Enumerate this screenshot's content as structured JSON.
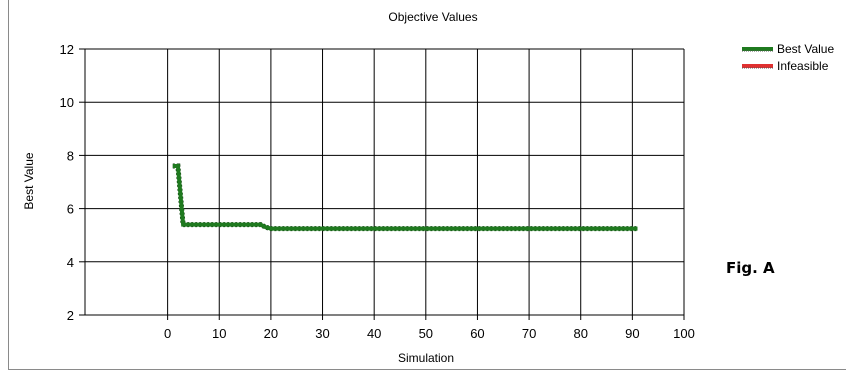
{
  "figure_label": "Fig. A",
  "chart_data": {
    "type": "line",
    "title": "Objective Values",
    "xlabel": "Simulation",
    "ylabel": "Best Value",
    "xlim": [
      -16,
      100
    ],
    "ylim": [
      2,
      12
    ],
    "xticks": [
      0,
      10,
      20,
      30,
      40,
      50,
      60,
      70,
      80,
      90,
      100
    ],
    "yticks": [
      2,
      4,
      6,
      8,
      10,
      12
    ],
    "grid": true,
    "legend_position": "top-right",
    "series": [
      {
        "name": "Best Value",
        "color": "#1f7a1f",
        "x": [
          1,
          2,
          3,
          4,
          18,
          19,
          20,
          91
        ],
        "y": [
          7.6,
          7.6,
          5.4,
          5.4,
          5.4,
          5.3,
          5.25,
          5.25
        ]
      },
      {
        "name": "Infeasible",
        "color": "#e03030",
        "x": [],
        "y": []
      }
    ]
  }
}
